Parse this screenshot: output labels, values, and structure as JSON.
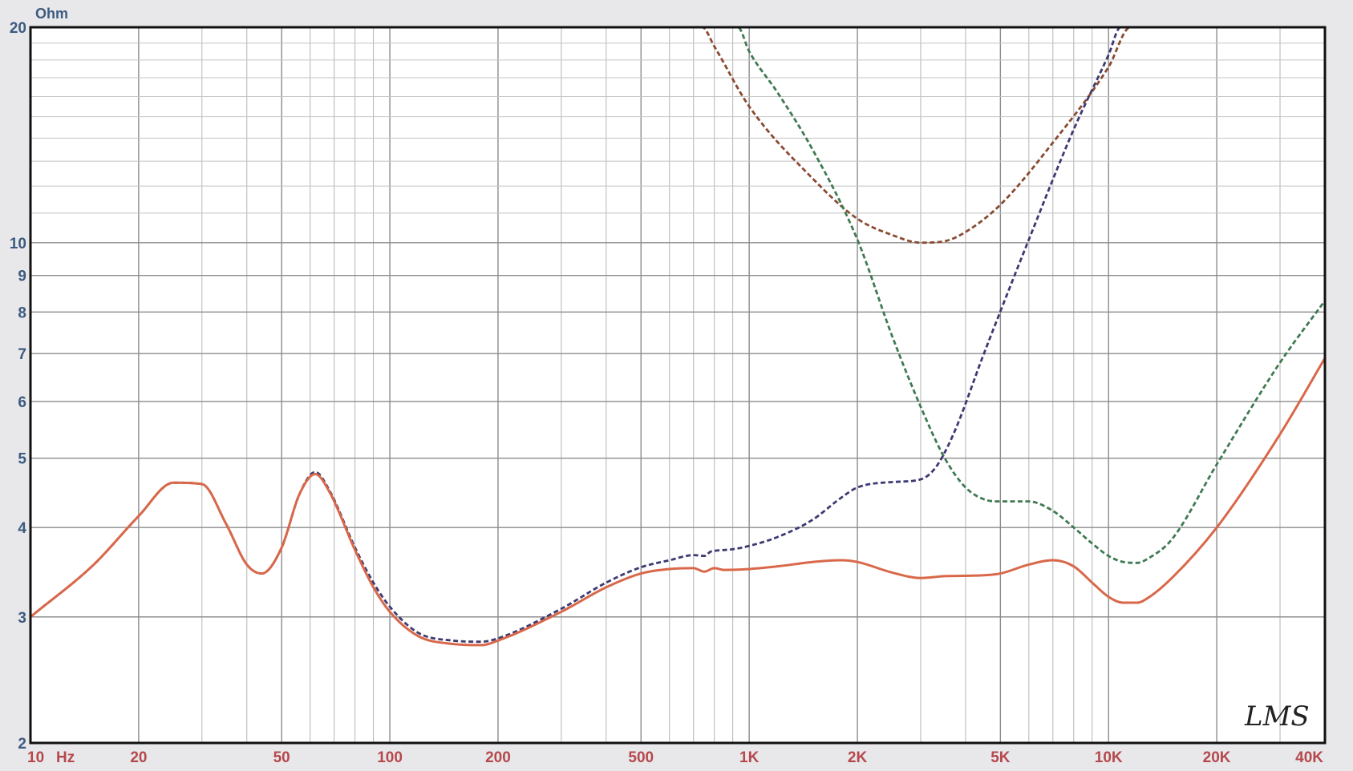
{
  "chart_data": {
    "type": "line",
    "title": "",
    "xlabel": "",
    "ylabel": "",
    "y_unit_label": "Ohm",
    "x_unit_label": "Hz",
    "x_scale": "log",
    "y_scale": "log",
    "xlim": [
      10,
      40000
    ],
    "ylim": [
      2,
      20
    ],
    "grid": true,
    "x_ticks": [
      {
        "value": 10,
        "label": "10"
      },
      {
        "value": 20,
        "label": "20"
      },
      {
        "value": 50,
        "label": "50"
      },
      {
        "value": 100,
        "label": "100"
      },
      {
        "value": 200,
        "label": "200"
      },
      {
        "value": 500,
        "label": "500"
      },
      {
        "value": 1000,
        "label": "1K"
      },
      {
        "value": 2000,
        "label": "2K"
      },
      {
        "value": 5000,
        "label": "5K"
      },
      {
        "value": 10000,
        "label": "10K"
      },
      {
        "value": 20000,
        "label": "20K"
      },
      {
        "value": 40000,
        "label": "40K"
      }
    ],
    "y_ticks": [
      {
        "value": 2,
        "label": "2"
      },
      {
        "value": 3,
        "label": "3"
      },
      {
        "value": 4,
        "label": "4"
      },
      {
        "value": 5,
        "label": "5"
      },
      {
        "value": 6,
        "label": "6"
      },
      {
        "value": 7,
        "label": "7"
      },
      {
        "value": 8,
        "label": "8"
      },
      {
        "value": 9,
        "label": "9"
      },
      {
        "value": 10,
        "label": "10"
      },
      {
        "value": 20,
        "label": "20"
      }
    ],
    "series": [
      {
        "color": "#8a4a32",
        "dash": true,
        "points": [
          [
            10,
            20
          ],
          [
            740,
            20
          ],
          [
            800,
            18.8
          ],
          [
            1000,
            15.5
          ],
          [
            1500,
            12.3
          ],
          [
            2000,
            10.8
          ],
          [
            2500,
            10.25
          ],
          [
            3000,
            10
          ],
          [
            3500,
            10.05
          ],
          [
            4000,
            10.35
          ],
          [
            5000,
            11.3
          ],
          [
            7000,
            13.8
          ],
          [
            10000,
            17.6
          ],
          [
            11500,
            20
          ],
          [
            40000,
            20
          ]
        ]
      },
      {
        "color": "#3f7a52",
        "dash": true,
        "points": [
          [
            10,
            20
          ],
          [
            930,
            20
          ],
          [
            1000,
            18.5
          ],
          [
            1200,
            16.2
          ],
          [
            1500,
            13.5
          ],
          [
            2000,
            10.1
          ],
          [
            2500,
            7.4
          ],
          [
            3000,
            5.9
          ],
          [
            3500,
            5.0
          ],
          [
            4000,
            4.55
          ],
          [
            4500,
            4.38
          ],
          [
            5000,
            4.35
          ],
          [
            6000,
            4.35
          ],
          [
            7000,
            4.22
          ],
          [
            8000,
            4.0
          ],
          [
            9000,
            3.8
          ],
          [
            10000,
            3.65
          ],
          [
            11000,
            3.58
          ],
          [
            12000,
            3.57
          ],
          [
            13000,
            3.63
          ],
          [
            15000,
            3.85
          ],
          [
            20000,
            4.9
          ],
          [
            30000,
            6.8
          ],
          [
            40000,
            8.3
          ]
        ]
      },
      {
        "color": "#3c3a72",
        "dash": true,
        "points": [
          [
            10,
            3.0
          ],
          [
            15,
            3.55
          ],
          [
            20,
            4.15
          ],
          [
            25,
            4.62
          ],
          [
            30,
            4.6
          ],
          [
            35,
            4.05
          ],
          [
            40,
            3.55
          ],
          [
            44,
            3.45
          ],
          [
            50,
            3.75
          ],
          [
            56,
            4.45
          ],
          [
            62,
            4.78
          ],
          [
            68,
            4.5
          ],
          [
            80,
            3.75
          ],
          [
            90,
            3.35
          ],
          [
            100,
            3.1
          ],
          [
            120,
            2.85
          ],
          [
            150,
            2.78
          ],
          [
            180,
            2.77
          ],
          [
            200,
            2.8
          ],
          [
            300,
            3.08
          ],
          [
            400,
            3.35
          ],
          [
            500,
            3.52
          ],
          [
            600,
            3.6
          ],
          [
            700,
            3.66
          ],
          [
            750,
            3.65
          ],
          [
            780,
            3.7
          ],
          [
            800,
            3.71
          ],
          [
            900,
            3.73
          ],
          [
            1000,
            3.77
          ],
          [
            1200,
            3.88
          ],
          [
            1500,
            4.1
          ],
          [
            1800,
            4.4
          ],
          [
            2000,
            4.55
          ],
          [
            2500,
            4.63
          ],
          [
            3000,
            4.67
          ],
          [
            3300,
            4.85
          ],
          [
            3700,
            5.4
          ],
          [
            4500,
            7.0
          ],
          [
            6000,
            10.1
          ],
          [
            8000,
            14.4
          ],
          [
            10000,
            18.3
          ],
          [
            10800,
            20
          ],
          [
            40000,
            20
          ]
        ]
      },
      {
        "color": "#d9684a",
        "dash": false,
        "points": [
          [
            10,
            3.0
          ],
          [
            15,
            3.55
          ],
          [
            20,
            4.15
          ],
          [
            25,
            4.62
          ],
          [
            30,
            4.6
          ],
          [
            35,
            4.05
          ],
          [
            40,
            3.55
          ],
          [
            44,
            3.45
          ],
          [
            50,
            3.75
          ],
          [
            56,
            4.45
          ],
          [
            62,
            4.75
          ],
          [
            68,
            4.48
          ],
          [
            80,
            3.72
          ],
          [
            90,
            3.3
          ],
          [
            100,
            3.05
          ],
          [
            120,
            2.82
          ],
          [
            150,
            2.75
          ],
          [
            180,
            2.74
          ],
          [
            200,
            2.78
          ],
          [
            300,
            3.05
          ],
          [
            400,
            3.3
          ],
          [
            500,
            3.45
          ],
          [
            600,
            3.5
          ],
          [
            700,
            3.51
          ],
          [
            750,
            3.47
          ],
          [
            800,
            3.51
          ],
          [
            850,
            3.49
          ],
          [
            1000,
            3.5
          ],
          [
            1200,
            3.53
          ],
          [
            1500,
            3.58
          ],
          [
            1800,
            3.6
          ],
          [
            2000,
            3.58
          ],
          [
            2500,
            3.46
          ],
          [
            3000,
            3.4
          ],
          [
            3500,
            3.42
          ],
          [
            4500,
            3.43
          ],
          [
            5000,
            3.45
          ],
          [
            6000,
            3.55
          ],
          [
            7000,
            3.6
          ],
          [
            8000,
            3.53
          ],
          [
            9000,
            3.35
          ],
          [
            10000,
            3.2
          ],
          [
            11000,
            3.14
          ],
          [
            12000,
            3.14
          ],
          [
            13000,
            3.2
          ],
          [
            15000,
            3.4
          ],
          [
            20000,
            4.0
          ],
          [
            30000,
            5.4
          ],
          [
            40000,
            6.9
          ]
        ]
      }
    ]
  },
  "logo": {
    "text": "LMS"
  }
}
